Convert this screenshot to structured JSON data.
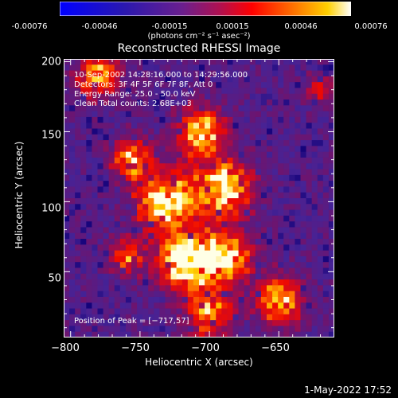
{
  "colorbar": {
    "ticks": [
      "-0.00076",
      "-0.00046",
      "-0.00015",
      "0.00015",
      "0.00046",
      "0.00076"
    ],
    "units": "(photons cm⁻² s⁻¹ asec⁻²)",
    "colors": [
      "#0000ff",
      "#3018a8",
      "#6a2090",
      "#b01050",
      "#ff0000",
      "#ff7000",
      "#ffd000",
      "#ffffff"
    ]
  },
  "chart_data": {
    "type": "heatmap",
    "title": "Reconstructed RHESSI Image",
    "xlabel": "Heliocentric X (arcsec)",
    "ylabel": "Heliocentric Y (arcsec)",
    "xlim": [
      -805,
      -610
    ],
    "ylim": [
      3,
      202
    ],
    "x_ticks": [
      "−800",
      "−750",
      "−700",
      "−650"
    ],
    "x_tick_values": [
      -800,
      -750,
      -700,
      -650
    ],
    "y_ticks": [
      "50",
      "100",
      "150",
      "200"
    ],
    "y_tick_values": [
      50,
      100,
      150,
      200
    ],
    "peak": [
      -717,
      57
    ],
    "info_lines": [
      "10-Sep-2002 14:28:16.000 to 14:29:56.000",
      "Detectors: 3F 4F 5F 6F 7F 8F, Att 0",
      "Energy Range: 25.0 - 50.0 keV",
      "Clean      Total counts: 2.68E+03"
    ],
    "peak_label": "Position of Peak = [−717,57]"
  },
  "footer": {
    "date": "1-May-2022 17:52"
  }
}
